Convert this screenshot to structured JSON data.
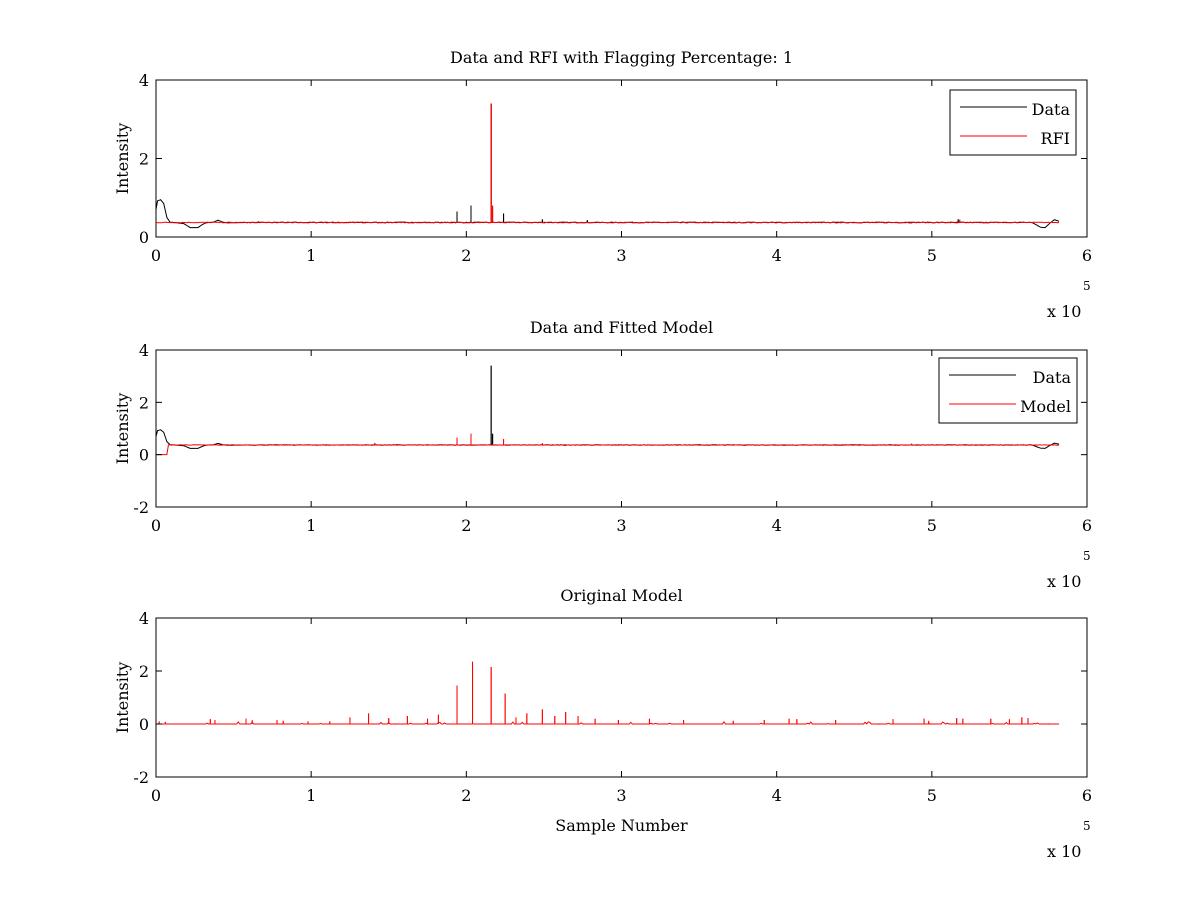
{
  "chart_data": [
    {
      "type": "line",
      "title": "Data and RFI with Flagging Percentage: 1",
      "xlabel": "",
      "ylabel": "Intensity",
      "xlim": [
        0,
        600000
      ],
      "ylim": [
        0,
        4
      ],
      "xticks": [
        0,
        100000,
        200000,
        300000,
        400000,
        500000,
        600000
      ],
      "xtick_labels": [
        "0",
        "1",
        "2",
        "3",
        "4",
        "5",
        "6"
      ],
      "yticks": [
        0,
        2,
        4
      ],
      "ytick_labels": [
        "0",
        "2",
        "4"
      ],
      "x_multiplier": {
        "base": "x 10",
        "exponent": "5"
      },
      "grid": false,
      "legend": {
        "position": "top-right",
        "entries": [
          "Data",
          "RFI"
        ]
      },
      "series": [
        {
          "name": "Data",
          "color": "#000000",
          "baseline": 0.37,
          "x_end": 582000,
          "start_curve": [
            [
              0,
              0.7
            ],
            [
              1000,
              0.92
            ],
            [
              3000,
              0.95
            ],
            [
              5000,
              0.85
            ],
            [
              7000,
              0.5
            ],
            [
              9000,
              0.38
            ],
            [
              12000,
              0.37
            ],
            [
              18000,
              0.34
            ],
            [
              22000,
              0.24
            ],
            [
              27000,
              0.24
            ],
            [
              30000,
              0.32
            ],
            [
              32000,
              0.36
            ],
            [
              37000,
              0.38
            ],
            [
              40000,
              0.43
            ],
            [
              43000,
              0.38
            ],
            [
              46000,
              0.36
            ],
            [
              60000,
              0.37
            ]
          ],
          "end_curve": [
            [
              565000,
              0.36
            ],
            [
              570000,
              0.25
            ],
            [
              573000,
              0.24
            ],
            [
              576000,
              0.35
            ],
            [
              579000,
              0.44
            ],
            [
              582000,
              0.4
            ]
          ],
          "spikes": [
            [
              194000,
              0.65
            ],
            [
              203000,
              0.8
            ],
            [
              216000,
              3.4
            ],
            [
              224000,
              0.6
            ],
            [
              249000,
              0.45
            ],
            [
              278000,
              0.43
            ],
            [
              517000,
              0.45
            ]
          ]
        },
        {
          "name": "RFI",
          "color": "#ff0000",
          "baseline": 0.37,
          "spikes": [
            [
              216000,
              3.4
            ],
            [
              216800,
              0.8
            ],
            [
              66000,
              0.4
            ],
            [
              118000,
              0.39
            ],
            [
              518000,
              0.44
            ]
          ]
        }
      ]
    },
    {
      "type": "line",
      "title": "Data and Fitted Model",
      "xlabel": "",
      "ylabel": "Intensity",
      "xlim": [
        0,
        600000
      ],
      "ylim": [
        -2,
        4
      ],
      "xticks": [
        0,
        100000,
        200000,
        300000,
        400000,
        500000,
        600000
      ],
      "xtick_labels": [
        "0",
        "1",
        "2",
        "3",
        "4",
        "5",
        "6"
      ],
      "yticks": [
        -2,
        0,
        2,
        4
      ],
      "ytick_labels": [
        "-2",
        "0",
        "2",
        "4"
      ],
      "x_multiplier": {
        "base": "x 10",
        "exponent": "5"
      },
      "grid": false,
      "legend": {
        "position": "top-right",
        "entries": [
          "Data",
          "Model"
        ]
      },
      "series": [
        {
          "name": "Data",
          "color": "#000000",
          "baseline": 0.37,
          "x_end": 582000,
          "start_curve": [
            [
              0,
              0.7
            ],
            [
              1000,
              0.92
            ],
            [
              3000,
              0.95
            ],
            [
              5000,
              0.85
            ],
            [
              7000,
              0.5
            ],
            [
              9000,
              0.38
            ],
            [
              12000,
              0.37
            ],
            [
              18000,
              0.34
            ],
            [
              22000,
              0.24
            ],
            [
              27000,
              0.24
            ],
            [
              30000,
              0.32
            ],
            [
              32000,
              0.36
            ],
            [
              37000,
              0.38
            ],
            [
              40000,
              0.43
            ],
            [
              43000,
              0.38
            ],
            [
              46000,
              0.36
            ],
            [
              60000,
              0.37
            ]
          ],
          "end_curve": [
            [
              565000,
              0.36
            ],
            [
              570000,
              0.25
            ],
            [
              573000,
              0.24
            ],
            [
              576000,
              0.35
            ],
            [
              579000,
              0.44
            ],
            [
              582000,
              0.4
            ]
          ],
          "spikes": [
            [
              216000,
              3.4
            ],
            [
              216800,
              0.8
            ]
          ]
        },
        {
          "name": "Model",
          "color": "#ff0000",
          "baseline": 0.37,
          "x_end": 582000,
          "start_curve": [
            [
              0,
              0.0
            ],
            [
              7000,
              0.0
            ],
            [
              7500,
              0.37
            ]
          ],
          "spikes": [
            [
              194000,
              0.65
            ],
            [
              203000,
              0.8
            ],
            [
              224000,
              0.6
            ],
            [
              141000,
              0.45
            ],
            [
              249000,
              0.44
            ],
            [
              487000,
              0.42
            ]
          ]
        }
      ]
    },
    {
      "type": "line",
      "title": "Original Model",
      "xlabel": "Sample Number",
      "ylabel": "Intensity",
      "xlim": [
        0,
        600000
      ],
      "ylim": [
        -2,
        4
      ],
      "xticks": [
        0,
        100000,
        200000,
        300000,
        400000,
        500000,
        600000
      ],
      "xtick_labels": [
        "0",
        "1",
        "2",
        "3",
        "4",
        "5",
        "6"
      ],
      "yticks": [
        -2,
        0,
        2,
        4
      ],
      "ytick_labels": [
        "-2",
        "0",
        "2",
        "4"
      ],
      "x_multiplier": {
        "base": "x 10",
        "exponent": "5"
      },
      "grid": false,
      "series": [
        {
          "name": "",
          "color": "#ff0000",
          "baseline": 0.0,
          "x_start": 1000,
          "x_end": 582000,
          "spikes": [
            [
              2000,
              0.1
            ],
            [
              6000,
              0.08
            ],
            [
              35000,
              0.18
            ],
            [
              38000,
              0.15
            ],
            [
              58000,
              0.2
            ],
            [
              62000,
              0.14
            ],
            [
              78000,
              0.15
            ],
            [
              82000,
              0.12
            ],
            [
              98000,
              0.1
            ],
            [
              112000,
              0.1
            ],
            [
              125000,
              0.25
            ],
            [
              137000,
              0.4
            ],
            [
              150000,
              0.22
            ],
            [
              162000,
              0.3
            ],
            [
              175000,
              0.2
            ],
            [
              182000,
              0.35
            ],
            [
              194000,
              1.45
            ],
            [
              204000,
              2.35
            ],
            [
              216000,
              2.15
            ],
            [
              225000,
              1.15
            ],
            [
              232000,
              0.25
            ],
            [
              239000,
              0.4
            ],
            [
              249000,
              0.55
            ],
            [
              257000,
              0.3
            ],
            [
              264000,
              0.45
            ],
            [
              272000,
              0.3
            ],
            [
              283000,
              0.2
            ],
            [
              298000,
              0.15
            ],
            [
              318000,
              0.2
            ],
            [
              340000,
              0.15
            ],
            [
              372000,
              0.12
            ],
            [
              392000,
              0.15
            ],
            [
              408000,
              0.2
            ],
            [
              413000,
              0.18
            ],
            [
              438000,
              0.15
            ],
            [
              475000,
              0.18
            ],
            [
              495000,
              0.2
            ],
            [
              498000,
              0.12
            ],
            [
              516000,
              0.22
            ],
            [
              520000,
              0.2
            ],
            [
              538000,
              0.2
            ],
            [
              550000,
              0.18
            ],
            [
              558000,
              0.25
            ],
            [
              562000,
              0.22
            ]
          ],
          "noise_amplitude": 0.08
        }
      ]
    }
  ]
}
